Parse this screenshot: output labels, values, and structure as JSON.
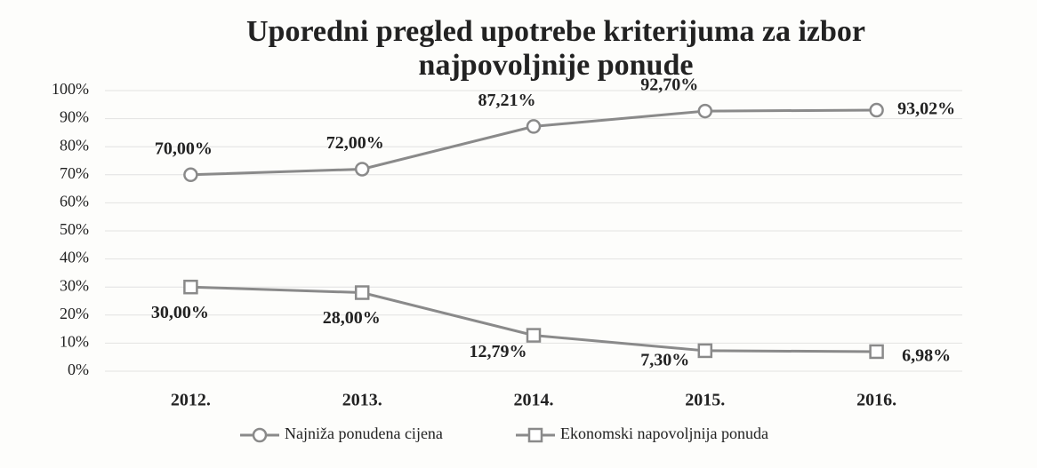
{
  "chart_data": {
    "type": "line",
    "title": [
      "Uporedni pregled upotrebe kriterijuma za izbor",
      "najpovoljnije ponude"
    ],
    "categories": [
      "2012.",
      "2013.",
      "2014.",
      "2015.",
      "2016."
    ],
    "series": [
      {
        "name": "Najniža ponudena cijena",
        "color": "#8a8a8a",
        "marker": "circle",
        "values": [
          70,
          72,
          87.21,
          92.7,
          93.02
        ],
        "value_labels": [
          "70,00%",
          "72,00%",
          "87,21%",
          "92,70%",
          "93,02%"
        ]
      },
      {
        "name": "Ekonomski napovoljnija ponuda",
        "color": "#8a8a8a",
        "marker": "square",
        "values": [
          30,
          28,
          12.79,
          7.3,
          6.98
        ],
        "value_labels": [
          "30,00%",
          "28,00%",
          "12,79%",
          "7,30%",
          "6,98%"
        ]
      }
    ],
    "ylim": [
      0,
      100
    ],
    "yticks": [
      {
        "value": 0,
        "label": "0%"
      },
      {
        "value": 10,
        "label": "10%"
      },
      {
        "value": 20,
        "label": "20%"
      },
      {
        "value": 30,
        "label": "30%"
      },
      {
        "value": 40,
        "label": "40%"
      },
      {
        "value": 50,
        "label": "50%"
      },
      {
        "value": 60,
        "label": "60%"
      },
      {
        "value": 70,
        "label": "70%"
      },
      {
        "value": 80,
        "label": "80%"
      },
      {
        "value": 90,
        "label": "90%"
      },
      {
        "value": 100,
        "label": "100%"
      }
    ],
    "grid": true,
    "legend": "bottom"
  }
}
